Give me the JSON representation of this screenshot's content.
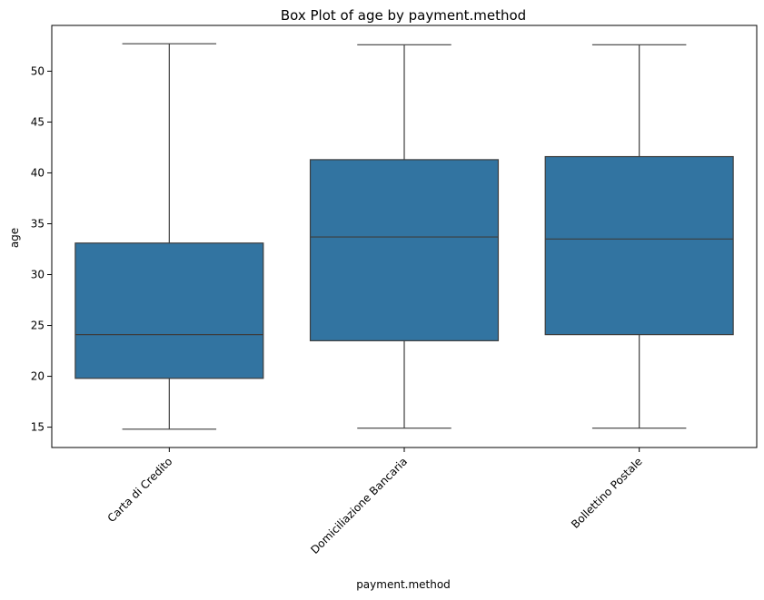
{
  "chart_data": {
    "type": "box",
    "title": "Box Plot of age by payment.method",
    "xlabel": "payment.method",
    "ylabel": "age",
    "ylim": [
      13,
      54.5
    ],
    "yticks": [
      "15",
      "20",
      "25",
      "30",
      "35",
      "40",
      "45",
      "50"
    ],
    "categories": [
      "Carta di Credito",
      "Domiciliazione Bancaria",
      "Bollettino Postale"
    ],
    "boxes": [
      {
        "category": "Carta di Credito",
        "min": 14.8,
        "q1": 19.8,
        "median": 24.1,
        "q3": 33.1,
        "max": 52.7
      },
      {
        "category": "Domiciliazione Bancaria",
        "min": 14.9,
        "q1": 23.5,
        "median": 33.7,
        "q3": 41.3,
        "max": 52.6
      },
      {
        "category": "Bollettino Postale",
        "min": 14.9,
        "q1": 24.1,
        "median": 33.5,
        "q3": 41.6,
        "max": 52.6
      }
    ],
    "grid": false,
    "colors": {
      "box_fill": "#3274a1",
      "line": "#3d3d3d",
      "axis": "#000000"
    }
  }
}
